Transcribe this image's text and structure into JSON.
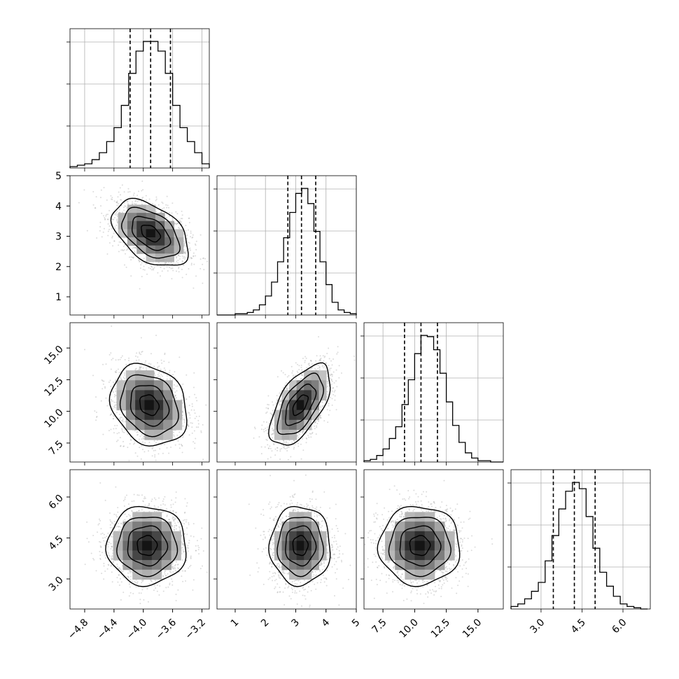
{
  "chart_data": {
    "type": "corner",
    "parameters": [
      {
        "range": [
          -5.0,
          -3.1
        ],
        "ticks": [
          -4.8,
          -4.4,
          -4.0,
          -3.6,
          -3.2
        ],
        "tick_labels": [
          "−4.8",
          "−4.4",
          "−4.0",
          "−3.6",
          "−3.2"
        ],
        "quantiles": [
          -4.18,
          -3.9,
          -3.63
        ],
        "hist_bins": [
          -5.0,
          -4.9,
          -4.8,
          -4.7,
          -4.6,
          -4.5,
          -4.4,
          -4.3,
          -4.2,
          -4.1,
          -4.0,
          -3.9,
          -3.8,
          -3.7,
          -3.6,
          -3.5,
          -3.4,
          -3.3,
          -3.2,
          -3.1
        ],
        "hist_counts": [
          1,
          2,
          3,
          6,
          11,
          19,
          29,
          45,
          68,
          84,
          91,
          91,
          84,
          68,
          45,
          29,
          19,
          11,
          3
        ]
      },
      {
        "range": [
          0.4,
          5.0
        ],
        "ticks": [
          1,
          2,
          3,
          4,
          5
        ],
        "tick_labels": [
          "1",
          "2",
          "3",
          "4",
          "5"
        ],
        "quantiles": [
          2.74,
          3.19,
          3.66
        ],
        "hist_bins": [
          0.4,
          0.6,
          0.8,
          1.0,
          1.2,
          1.4,
          1.6,
          1.8,
          2.0,
          2.2,
          2.4,
          2.6,
          2.8,
          3.0,
          3.2,
          3.4,
          3.6,
          3.8,
          4.0,
          4.2,
          4.4,
          4.6,
          4.8,
          5.0
        ],
        "hist_counts": [
          0,
          0,
          0,
          1,
          1,
          2,
          4,
          8,
          15,
          26,
          42,
          61,
          81,
          96,
          100,
          88,
          66,
          42,
          24,
          10,
          4,
          2,
          1
        ]
      },
      {
        "range": [
          6.0,
          17.0
        ],
        "ticks": [
          7.5,
          10.0,
          12.5,
          15.0
        ],
        "tick_labels": [
          "7.5",
          "10.0",
          "12.5",
          "15.0"
        ],
        "quantiles": [
          9.2,
          10.5,
          11.8
        ],
        "hist_bins": [
          6.0,
          6.5,
          7.0,
          7.5,
          8.0,
          8.5,
          9.0,
          9.5,
          10.0,
          10.5,
          11.0,
          11.5,
          12.0,
          12.5,
          13.0,
          13.5,
          14.0,
          14.5,
          15.0,
          15.5,
          16.0,
          16.5,
          17.0
        ],
        "hist_counts": [
          1,
          2,
          5,
          10,
          18,
          27,
          44,
          63,
          83,
          97,
          96,
          86,
          68,
          46,
          28,
          15,
          7,
          3,
          1,
          1,
          0,
          0
        ]
      },
      {
        "range": [
          1.9,
          7.0
        ],
        "ticks": [
          3.0,
          4.5,
          6.0
        ],
        "tick_labels": [
          "3.0",
          "4.5",
          "6.0"
        ],
        "quantiles": [
          3.45,
          4.22,
          4.98
        ],
        "hist_bins": [
          1.9,
          2.15,
          2.4,
          2.65,
          2.9,
          3.15,
          3.4,
          3.65,
          3.9,
          4.15,
          4.4,
          4.65,
          4.9,
          5.15,
          5.4,
          5.65,
          5.9,
          6.15,
          6.4,
          6.65,
          6.9
        ],
        "hist_counts": [
          2,
          4,
          8,
          14,
          21,
          38,
          58,
          79,
          93,
          100,
          95,
          73,
          48,
          29,
          18,
          10,
          4,
          2,
          1,
          0
        ]
      }
    ],
    "panels_2d": [
      {
        "xi": 0,
        "yi": 1,
        "center": [
          -3.9,
          3.1
        ],
        "sigma": [
          0.26,
          0.55
        ],
        "rho": -0.45
      },
      {
        "xi": 0,
        "yi": 2,
        "center": [
          -3.92,
          10.5
        ],
        "sigma": [
          0.26,
          1.6
        ],
        "rho": -0.2
      },
      {
        "xi": 1,
        "yi": 2,
        "center": [
          3.15,
          10.5
        ],
        "sigma": [
          0.5,
          1.6
        ],
        "rho": 0.6
      },
      {
        "xi": 0,
        "yi": 3,
        "center": [
          -3.95,
          4.22
        ],
        "sigma": [
          0.27,
          0.72
        ],
        "rho": 0.0
      },
      {
        "xi": 1,
        "yi": 3,
        "center": [
          3.15,
          4.22
        ],
        "sigma": [
          0.5,
          0.72
        ],
        "rho": 0.0
      },
      {
        "xi": 2,
        "yi": 3,
        "center": [
          10.4,
          4.22
        ],
        "sigma": [
          1.6,
          0.72
        ],
        "rho": 0.0
      }
    ],
    "contour_levels": [
      0.5,
      1.0,
      1.5,
      2.0
    ],
    "grid": true,
    "colors": {
      "line": "#000000",
      "grid": "#b0b0b0",
      "points": "#9a9a9a"
    }
  }
}
